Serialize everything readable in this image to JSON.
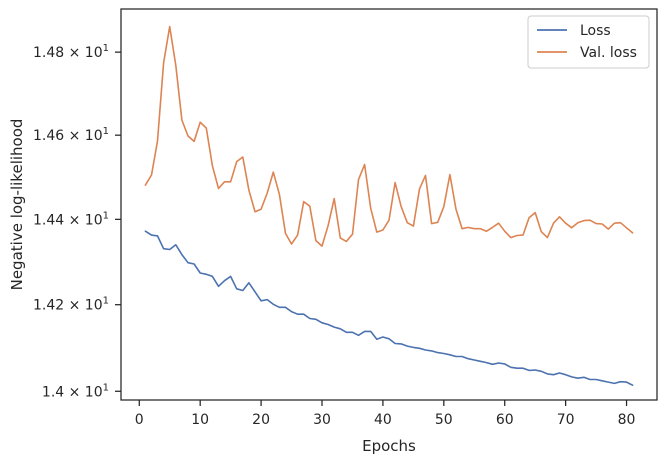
{
  "chart_data": {
    "type": "line",
    "xlabel": "Epochs",
    "ylabel": "Negative log-likelihood",
    "xlim": [
      -3,
      85
    ],
    "ylim": [
      13.98,
      14.905
    ],
    "yscale": "log",
    "grid": false,
    "legend_position": "top-right",
    "x_ticks": [
      0,
      10,
      20,
      30,
      40,
      50,
      60,
      70,
      80
    ],
    "x_tick_labels": [
      "0",
      "10",
      "20",
      "30",
      "40",
      "50",
      "60",
      "70",
      "80"
    ],
    "y_ticks": [
      14.0,
      14.2,
      14.4,
      14.6,
      14.8
    ],
    "y_tick_labels": [
      {
        "mantissa": "1.4",
        "exponent": "1"
      },
      {
        "mantissa": "1.42",
        "exponent": "1"
      },
      {
        "mantissa": "1.44",
        "exponent": "1"
      },
      {
        "mantissa": "1.46",
        "exponent": "1"
      },
      {
        "mantissa": "1.48",
        "exponent": "1"
      }
    ],
    "times_symbol": "×",
    "exponent_base": "10",
    "x": [
      1,
      2,
      3,
      4,
      5,
      6,
      7,
      8,
      9,
      10,
      11,
      12,
      13,
      14,
      15,
      16,
      17,
      18,
      19,
      20,
      21,
      22,
      23,
      24,
      25,
      26,
      27,
      28,
      29,
      30,
      31,
      32,
      33,
      34,
      35,
      36,
      37,
      38,
      39,
      40,
      41,
      42,
      43,
      44,
      45,
      46,
      47,
      48,
      49,
      50,
      51,
      52,
      53,
      54,
      55,
      56,
      57,
      58,
      59,
      60,
      61,
      62,
      63,
      64,
      65,
      66,
      67,
      68,
      69,
      70,
      71,
      72,
      73,
      74,
      75,
      76,
      77,
      78,
      79,
      80,
      81
    ],
    "series": [
      {
        "name": "Loss",
        "color": "#4c72b0",
        "values": [
          14.372,
          14.363,
          14.361,
          14.331,
          14.329,
          14.34,
          14.317,
          14.298,
          14.295,
          14.274,
          14.271,
          14.266,
          14.243,
          14.256,
          14.266,
          14.237,
          14.233,
          14.251,
          14.23,
          14.209,
          14.212,
          14.201,
          14.194,
          14.194,
          14.184,
          14.178,
          14.178,
          14.168,
          14.166,
          14.158,
          14.154,
          14.148,
          14.144,
          14.136,
          14.136,
          14.129,
          14.138,
          14.138,
          14.12,
          14.125,
          14.121,
          14.11,
          14.109,
          14.104,
          14.101,
          14.099,
          14.095,
          14.093,
          14.089,
          14.087,
          14.084,
          14.08,
          14.08,
          14.075,
          14.072,
          14.069,
          14.066,
          14.062,
          14.065,
          14.063,
          14.055,
          14.053,
          14.053,
          14.048,
          14.049,
          14.046,
          14.04,
          14.038,
          14.042,
          14.038,
          14.033,
          14.03,
          14.032,
          14.027,
          14.027,
          14.024,
          14.021,
          14.018,
          14.022,
          14.021,
          14.014
        ]
      },
      {
        "name": "Val. loss",
        "color": "#dd8452",
        "values": [
          14.481,
          14.505,
          14.586,
          14.774,
          14.862,
          14.768,
          14.636,
          14.598,
          14.585,
          14.631,
          14.617,
          14.527,
          14.473,
          14.489,
          14.489,
          14.537,
          14.548,
          14.469,
          14.418,
          14.424,
          14.462,
          14.512,
          14.459,
          14.367,
          14.342,
          14.363,
          14.442,
          14.431,
          14.35,
          14.337,
          14.385,
          14.449,
          14.356,
          14.348,
          14.365,
          14.494,
          14.53,
          14.426,
          14.37,
          14.375,
          14.398,
          14.487,
          14.43,
          14.392,
          14.384,
          14.472,
          14.504,
          14.39,
          14.393,
          14.43,
          14.506,
          14.424,
          14.378,
          14.381,
          14.378,
          14.378,
          14.372,
          14.381,
          14.391,
          14.372,
          14.357,
          14.362,
          14.363,
          14.404,
          14.416,
          14.371,
          14.357,
          14.391,
          14.406,
          14.391,
          14.38,
          14.392,
          14.397,
          14.398,
          14.39,
          14.389,
          14.377,
          14.391,
          14.392,
          14.38,
          14.368
        ]
      }
    ]
  }
}
